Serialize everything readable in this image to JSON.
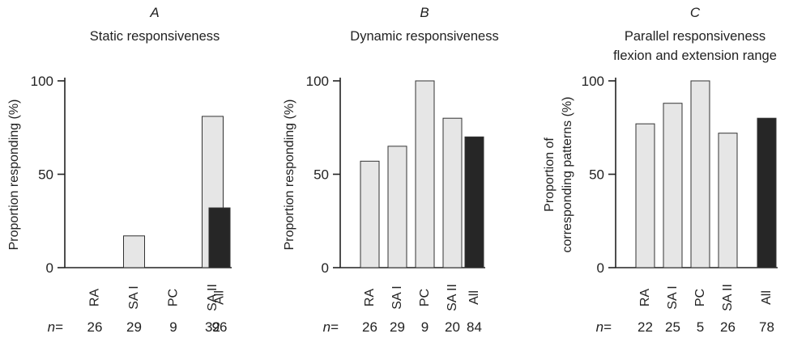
{
  "chart_data": [
    {
      "type": "bar",
      "panel": "A",
      "title": [
        "Static responsiveness"
      ],
      "ylabel": [
        "Proportion responding (%)"
      ],
      "ylim": [
        0,
        100
      ],
      "yticks": [
        0,
        50,
        100
      ],
      "categories": [
        "RA",
        "SA I",
        "PC",
        "SA II",
        "All"
      ],
      "values": [
        0,
        17,
        0,
        81,
        32
      ],
      "n_label": "n =",
      "n": [
        26,
        29,
        9,
        32,
        96
      ],
      "fills": [
        "#e6e6e6",
        "#e6e6e6",
        "#e6e6e6",
        "#e6e6e6",
        "#262626"
      ]
    },
    {
      "type": "bar",
      "panel": "B",
      "title": [
        "Dynamic responsiveness"
      ],
      "ylabel": [
        "Proportion responding (%)"
      ],
      "ylim": [
        0,
        100
      ],
      "yticks": [
        0,
        50,
        100
      ],
      "categories": [
        "RA",
        "SA I",
        "PC",
        "SA II",
        "All"
      ],
      "values": [
        57,
        65,
        100,
        80,
        70
      ],
      "n_label": "n =",
      "n": [
        26,
        29,
        9,
        20,
        84
      ],
      "fills": [
        "#e6e6e6",
        "#e6e6e6",
        "#e6e6e6",
        "#e6e6e6",
        "#262626"
      ]
    },
    {
      "type": "bar",
      "panel": "C",
      "title": [
        "Parallel responsiveness",
        "flexion and extension range"
      ],
      "ylabel": [
        "Proportion of",
        "corresponding patterns (%)"
      ],
      "ylim": [
        0,
        100
      ],
      "yticks": [
        0,
        50,
        100
      ],
      "categories": [
        "RA",
        "SA I",
        "PC",
        "SA II",
        "All"
      ],
      "values": [
        77,
        88,
        100,
        72,
        80
      ],
      "n_label": "n =",
      "n": [
        22,
        25,
        5,
        26,
        78
      ],
      "fills": [
        "#e6e6e6",
        "#e6e6e6",
        "#e6e6e6",
        "#e6e6e6",
        "#262626"
      ]
    }
  ]
}
